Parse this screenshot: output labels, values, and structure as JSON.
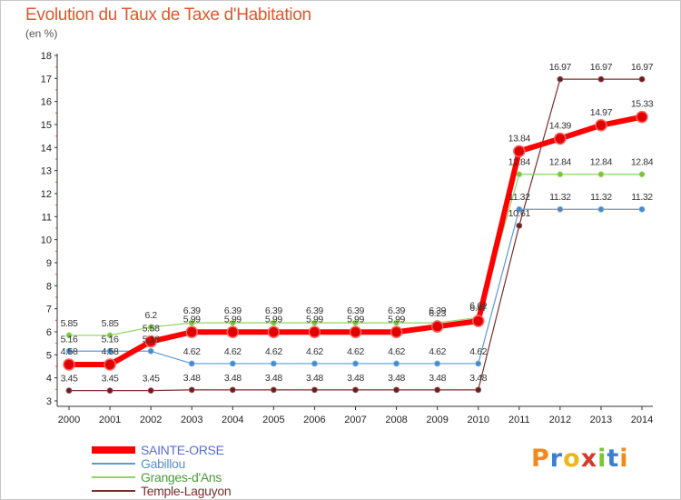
{
  "header": {
    "title": "Evolution du Taux de Taxe d'Habitation",
    "unit": "(en %)"
  },
  "brand": {
    "text": "Proxiti",
    "colors": [
      "#f08a1c",
      "#3b7fd0",
      "#f0b41c",
      "#d23a2a",
      "#7cc33a",
      "#3b7fd0",
      "#f08a1c"
    ]
  },
  "chart_data": {
    "type": "line",
    "x": [
      "2000",
      "2001",
      "2002",
      "2003",
      "2004",
      "2005",
      "2006",
      "2007",
      "2008",
      "2009",
      "2010",
      "2011",
      "2012",
      "2013",
      "2014"
    ],
    "ylim": [
      3,
      18
    ],
    "yticks": [
      "3",
      "4",
      "5",
      "6",
      "7",
      "8",
      "9",
      "10",
      "11",
      "12",
      "13",
      "14",
      "15",
      "16",
      "17",
      "18"
    ],
    "grid": false,
    "legend_position": "bottom-left",
    "series": [
      {
        "name": "SAINTE-ORSE",
        "color": "#ff0000",
        "values": [
          4.58,
          4.58,
          5.58,
          5.99,
          5.99,
          5.99,
          5.99,
          5.99,
          5.99,
          6.23,
          6.47,
          13.84,
          14.39,
          14.97,
          15.33
        ],
        "labels": [
          "4.58",
          "4.58",
          "5.58",
          "5.99",
          "5.99",
          "5.99",
          "5.99",
          "5.99",
          "5.99",
          "6.23",
          "6.47",
          "13.84",
          "14.39",
          "14.97",
          "15.33"
        ]
      },
      {
        "name": "Gabillou",
        "color": "#5b9bd5",
        "values": [
          5.16,
          5.16,
          5.16,
          4.62,
          4.62,
          4.62,
          4.62,
          4.62,
          4.62,
          4.62,
          4.62,
          11.32,
          11.32,
          11.32,
          11.32
        ],
        "labels": [
          "5.16",
          "5.16",
          "5.16",
          "4.62",
          "4.62",
          "4.62",
          "4.62",
          "4.62",
          "4.62",
          "4.62",
          "4.62",
          "11.32",
          "11.32",
          "11.32",
          "11.32"
        ]
      },
      {
        "name": "Granges-d'Ans",
        "color": "#8ed462",
        "values": [
          5.85,
          5.85,
          6.2,
          6.39,
          6.39,
          6.39,
          6.39,
          6.39,
          6.39,
          6.39,
          6.62,
          12.84,
          12.84,
          12.84,
          12.84
        ],
        "labels": [
          "5.85",
          "5.85",
          "6.2",
          "6.39",
          "6.39",
          "6.39",
          "6.39",
          "6.39",
          "6.39",
          "6.39",
          "6.62",
          "12.84",
          "12.84",
          "12.84",
          "12.84"
        ]
      },
      {
        "name": "Temple-Laguyon",
        "color": "#7b2e2e",
        "values": [
          3.45,
          3.45,
          3.45,
          3.48,
          3.48,
          3.48,
          3.48,
          3.48,
          3.48,
          3.48,
          3.48,
          10.61,
          16.97,
          16.97,
          16.97
        ],
        "labels": [
          "3.45",
          "3.45",
          "3.45",
          "3.48",
          "3.48",
          "3.48",
          "3.48",
          "3.48",
          "3.48",
          "3.48",
          "3.48",
          "10.61",
          "16.97",
          "16.97",
          "16.97"
        ]
      }
    ]
  }
}
